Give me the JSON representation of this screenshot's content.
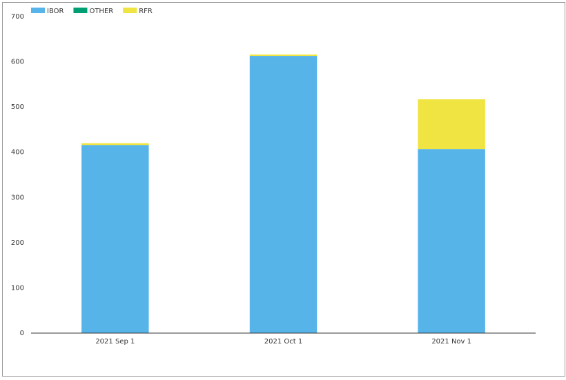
{
  "chart_data": {
    "type": "stacked_bar",
    "categories": [
      "2021 Sep 1",
      "2021 Oct 1",
      "2021 Nov 1"
    ],
    "series": [
      {
        "name": "IBOR",
        "color": "#56b4e9",
        "values": [
          416,
          613,
          407
        ]
      },
      {
        "name": "OTHER",
        "color": "#009e73",
        "values": [
          0,
          0,
          0
        ]
      },
      {
        "name": "RFR",
        "color": "#f0e442",
        "values": [
          4,
          3,
          110
        ]
      }
    ],
    "ylim": [
      0,
      700
    ],
    "yticks": [
      0,
      100,
      200,
      300,
      400,
      500,
      600,
      700
    ],
    "grid": false,
    "legend": "top-left"
  }
}
